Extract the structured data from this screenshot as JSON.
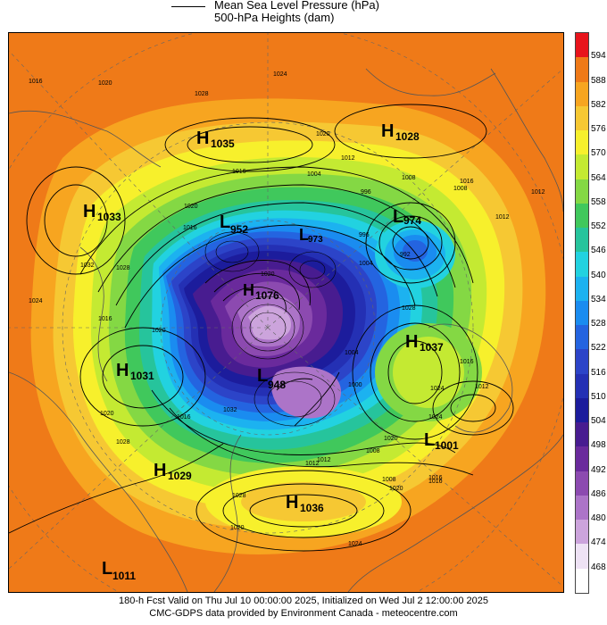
{
  "legend": {
    "line1": "Mean Sea Level Pressure (hPa)",
    "line2": "500-hPa Heights (dam)"
  },
  "colorbar": {
    "levels": [
      "594",
      "588",
      "582",
      "576",
      "570",
      "564",
      "558",
      "552",
      "546",
      "540",
      "534",
      "528",
      "522",
      "516",
      "510",
      "504",
      "498",
      "492",
      "486",
      "480",
      "474",
      "468"
    ],
    "colors": [
      "#e8141c",
      "#ef7a18",
      "#f7a520",
      "#f6c833",
      "#f7f02c",
      "#c4ea32",
      "#84d844",
      "#40c85c",
      "#26c49c",
      "#22d2e0",
      "#1cb2f0",
      "#1a8cf0",
      "#2464e0",
      "#2c44c8",
      "#2430b4",
      "#1c1c9c",
      "#481c90",
      "#6a2a9c",
      "#8c4ab0",
      "#ac74c8",
      "#cca4dc",
      "#eee2f4"
    ],
    "top_color": "#e8141c",
    "bottom_color": "#ffffff"
  },
  "pressure_centers": [
    {
      "type": "H",
      "value": "1035"
    },
    {
      "type": "H",
      "value": "1028"
    },
    {
      "type": "H",
      "value": "1033"
    },
    {
      "type": "L",
      "value": "952"
    },
    {
      "type": "L",
      "value": "973"
    },
    {
      "type": "L",
      "value": "974"
    },
    {
      "type": "H",
      "value": "1076"
    },
    {
      "type": "H",
      "value": "1037"
    },
    {
      "type": "H",
      "value": "1031"
    },
    {
      "type": "L",
      "value": "948"
    },
    {
      "type": "L",
      "value": "1001"
    },
    {
      "type": "H",
      "value": "1029"
    },
    {
      "type": "H",
      "value": "1036"
    },
    {
      "type": "L",
      "value": "1011"
    }
  ],
  "isobar_labels": [
    "1016",
    "1020",
    "1028",
    "1024",
    "1020",
    "1012",
    "1008",
    "1004",
    "996",
    "1016",
    "1012",
    "1020",
    "1008",
    "1016",
    "1012",
    "996",
    "992",
    "1004",
    "1032",
    "1028",
    "1016",
    "1020",
    "1028",
    "1024",
    "1020",
    "1016",
    "1032",
    "1024",
    "1028",
    "1012",
    "1008",
    "1004",
    "1000",
    "1016",
    "1024",
    "1012",
    "1020",
    "1028",
    "1016",
    "1008",
    "1012",
    "1020",
    "1024",
    "1016",
    "1020",
    "1020",
    "1016"
  ],
  "footer": {
    "line1": "180-h Fcst Valid on Thu Jul 10 00:00:00 2025, Initialized on Wed Jul  2 12:00:00 2025",
    "line2": "CMC-GDPS data provided by Environment Canada - meteocentre.com"
  }
}
